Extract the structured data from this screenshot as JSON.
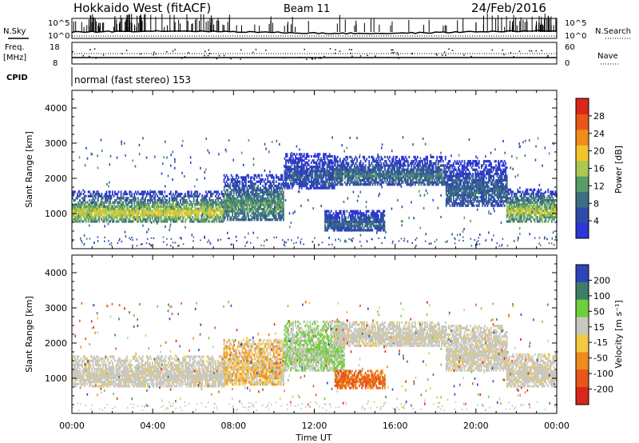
{
  "header": {
    "radar": "Hokkaido West (fitACF)",
    "beam": "Beam 11",
    "date": "24/Feb/2016"
  },
  "status": {
    "nsky_label": "N.Sky",
    "nsearch_label": "N.Search",
    "nsky_ticks": [
      "10^5",
      "10^0"
    ],
    "nsearch_ticks": [
      "10^5",
      "10^0"
    ],
    "freq_label": "Freq.",
    "freq_unit": "[MHz]",
    "freq_ticks": [
      "18",
      "8"
    ],
    "nave_label": "Nave",
    "nave_ticks": [
      "60",
      "0"
    ],
    "cpid_label": "CPID",
    "cpid_value": "normal (fast stereo) 153"
  },
  "chart_data": [
    {
      "type": "heatmap",
      "title": "",
      "variable": "Power",
      "xlabel": "Time UT",
      "ylabel": "Slant Range [km]",
      "xlim": [
        0,
        24
      ],
      "ylim": [
        0,
        4500
      ],
      "x_ticks": [
        "00:00",
        "04:00",
        "08:00",
        "12:00",
        "16:00",
        "20:00",
        "00:00"
      ],
      "y_ticks": [
        "1000",
        "2000",
        "3000",
        "4000"
      ],
      "colorbar": {
        "label": "Power [dB]",
        "ticks": [
          "4",
          "8",
          "12",
          "16",
          "20",
          "24",
          "28"
        ],
        "range": [
          0,
          30
        ],
        "colors": [
          "#2b35d8",
          "#2f4ba8",
          "#3d6e84",
          "#5a9b6a",
          "#a9c94f",
          "#f1c62d",
          "#f08c1c",
          "#e8561a",
          "#d9261a"
        ]
      },
      "bands": [
        {
          "t_start": 0.0,
          "t_end": 7.5,
          "r_lo": 750,
          "r_hi": 1600,
          "core_power_db": 17
        },
        {
          "t_start": 7.5,
          "t_end": 10.5,
          "r_lo": 800,
          "r_hi": 2100,
          "core_power_db": 12
        },
        {
          "t_start": 10.5,
          "t_end": 13.0,
          "r_lo": 1700,
          "r_hi": 2700,
          "core_power_db": 6
        },
        {
          "t_start": 12.5,
          "t_end": 15.5,
          "r_lo": 500,
          "r_hi": 1100,
          "core_power_db": 8
        },
        {
          "t_start": 13.0,
          "t_end": 18.5,
          "r_lo": 1800,
          "r_hi": 2600,
          "core_power_db": 9
        },
        {
          "t_start": 18.5,
          "t_end": 21.5,
          "r_lo": 1200,
          "r_hi": 2500,
          "core_power_db": 8
        },
        {
          "t_start": 21.5,
          "t_end": 24.0,
          "r_lo": 750,
          "r_hi": 1700,
          "core_power_db": 16
        }
      ]
    },
    {
      "type": "heatmap",
      "title": "",
      "variable": "Velocity",
      "xlabel": "Time UT",
      "ylabel": "Slant Range [km]",
      "xlim": [
        0,
        24
      ],
      "ylim": [
        0,
        4500
      ],
      "x_ticks": [
        "00:00",
        "04:00",
        "08:00",
        "12:00",
        "16:00",
        "20:00",
        "00:00"
      ],
      "y_ticks": [
        "1000",
        "2000",
        "3000",
        "4000"
      ],
      "colorbar": {
        "label": "Velocity [m s⁻¹]",
        "ticks": [
          "200",
          "100",
          "50",
          "15",
          "-15",
          "-50",
          "-100",
          "-200"
        ],
        "colors": [
          "#2f44b8",
          "#3e7d6a",
          "#6fcf3a",
          "#c8c8c0",
          "#f5c842",
          "#f08c1c",
          "#e8561a",
          "#d9261a"
        ]
      },
      "bands": [
        {
          "t_start": 0.0,
          "t_end": 7.5,
          "r_lo": 750,
          "r_hi": 1600,
          "velocity": 0
        },
        {
          "t_start": 7.5,
          "t_end": 10.5,
          "r_lo": 800,
          "r_hi": 2100,
          "velocity": -20
        },
        {
          "t_start": 10.5,
          "t_end": 13.5,
          "r_lo": 1200,
          "r_hi": 2600,
          "velocity": 30
        },
        {
          "t_start": 13.0,
          "t_end": 15.5,
          "r_lo": 700,
          "r_hi": 1200,
          "velocity": -80
        },
        {
          "t_start": 13.0,
          "t_end": 18.5,
          "r_lo": 1900,
          "r_hi": 2600,
          "velocity": 0
        },
        {
          "t_start": 18.5,
          "t_end": 21.5,
          "r_lo": 1200,
          "r_hi": 2500,
          "velocity": 0
        },
        {
          "t_start": 21.5,
          "t_end": 24.0,
          "r_lo": 750,
          "r_hi": 1700,
          "velocity": 0
        }
      ]
    }
  ]
}
